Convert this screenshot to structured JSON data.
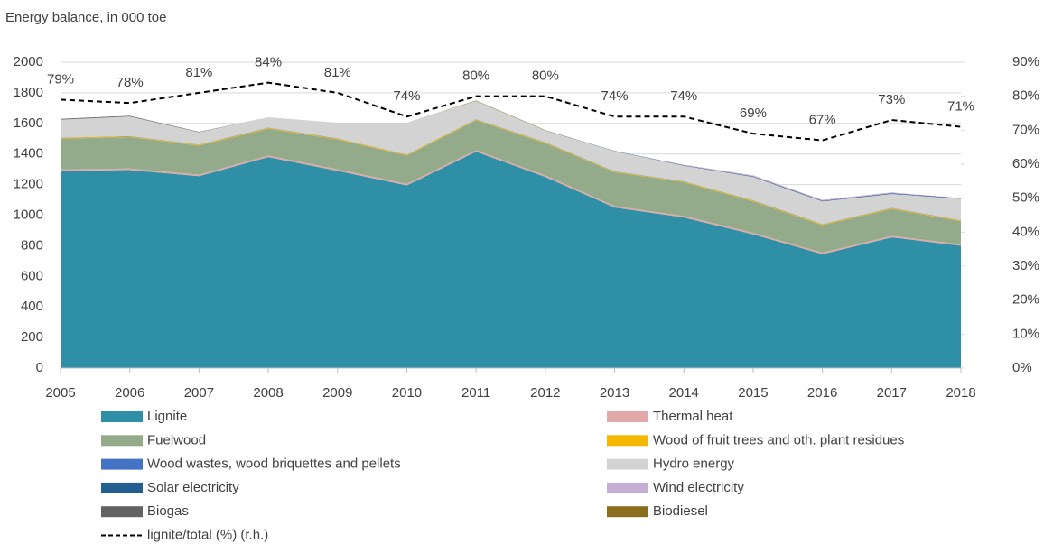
{
  "chart_data": {
    "type": "stacked_area_line",
    "title": "Energy balance, in 000 toe",
    "x": [
      2005,
      2006,
      2007,
      2008,
      2009,
      2010,
      2011,
      2012,
      2013,
      2014,
      2015,
      2016,
      2017,
      2018
    ],
    "xlim": [
      2005,
      2018
    ],
    "xticks": [
      2005,
      2006,
      2007,
      2008,
      2009,
      2010,
      2011,
      2012,
      2013,
      2014,
      2015,
      2016,
      2017,
      2018
    ],
    "ylim": [
      0,
      2000
    ],
    "yticks": [
      0,
      200,
      400,
      600,
      800,
      1000,
      1200,
      1400,
      1600,
      1800,
      2000
    ],
    "y2lim": [
      0,
      90
    ],
    "y2ticks": [
      {
        "value": 0,
        "label": "0%"
      },
      {
        "value": 10,
        "label": "10%"
      },
      {
        "value": 20,
        "label": "20%"
      },
      {
        "value": 30,
        "label": "30%"
      },
      {
        "value": 40,
        "label": "40%"
      },
      {
        "value": 50,
        "label": "50%"
      },
      {
        "value": 60,
        "label": "60%"
      },
      {
        "value": 70,
        "label": "70%"
      },
      {
        "value": 80,
        "label": "80%"
      },
      {
        "value": 90,
        "label": "90%"
      }
    ],
    "grid": true,
    "series": [
      {
        "name": "Lignite",
        "color": "#2e8fa6",
        "values": [
          1290,
          1295,
          1255,
          1380,
          1290,
          1195,
          1415,
          1250,
          1050,
          985,
          875,
          745,
          855,
          800
        ]
      },
      {
        "name": "Thermal heat",
        "color": "#e0a8a8",
        "values": [
          10,
          10,
          10,
          10,
          10,
          10,
          10,
          10,
          10,
          10,
          10,
          10,
          10,
          10
        ]
      },
      {
        "name": "Fuelwood",
        "color": "#93ab8a",
        "values": [
          200,
          205,
          190,
          175,
          195,
          185,
          195,
          210,
          220,
          220,
          205,
          180,
          175,
          150
        ]
      },
      {
        "name": "Wood of fruit trees and oth. plant residues",
        "color": "#f5b800",
        "values": [
          5,
          5,
          5,
          5,
          5,
          5,
          5,
          5,
          5,
          5,
          5,
          5,
          5,
          5
        ]
      },
      {
        "name": "Wood wastes, wood briquettes and pellets",
        "color": "#4472c4",
        "values": [
          2,
          2,
          2,
          2,
          2,
          2,
          2,
          2,
          2,
          2,
          2,
          2,
          2,
          2
        ]
      },
      {
        "name": "Hydro energy",
        "color": "#d3d3d3",
        "values": [
          118,
          128,
          80,
          68,
          103,
          208,
          120,
          76,
          131,
          101,
          153,
          148,
          92,
          140
        ]
      },
      {
        "name": "Solar electricity",
        "color": "#255e91",
        "values": [
          0,
          0,
          0,
          0,
          0,
          0,
          0,
          1,
          2,
          3,
          4,
          4,
          4,
          4
        ]
      },
      {
        "name": "Wind electricity",
        "color": "#c5aed6",
        "values": [
          0,
          0,
          0,
          0,
          0,
          0,
          0,
          0,
          0,
          4,
          6,
          6,
          6,
          0
        ]
      },
      {
        "name": "Biogas",
        "color": "#636363",
        "values": [
          5,
          5,
          3,
          0,
          0,
          0,
          0,
          0,
          0,
          0,
          0,
          0,
          0,
          0
        ]
      },
      {
        "name": "Biodiesel",
        "color": "#8b6d1e",
        "values": [
          0,
          0,
          0,
          0,
          0,
          0,
          3,
          2,
          0,
          0,
          0,
          0,
          0,
          0
        ]
      },
      {
        "name": "lignite/total (%) (r.h.)",
        "color": "#000000",
        "axis": "y2",
        "values": [
          79,
          78,
          81,
          84,
          81,
          74,
          80,
          80,
          74,
          74,
          69,
          67,
          73,
          71
        ],
        "value_labels": [
          "79%",
          "78%",
          "81%",
          "84%",
          "81%",
          "74%",
          "80%",
          "80%",
          "74%",
          "74%",
          "69%",
          "67%",
          "73%",
          "71%"
        ]
      }
    ]
  }
}
